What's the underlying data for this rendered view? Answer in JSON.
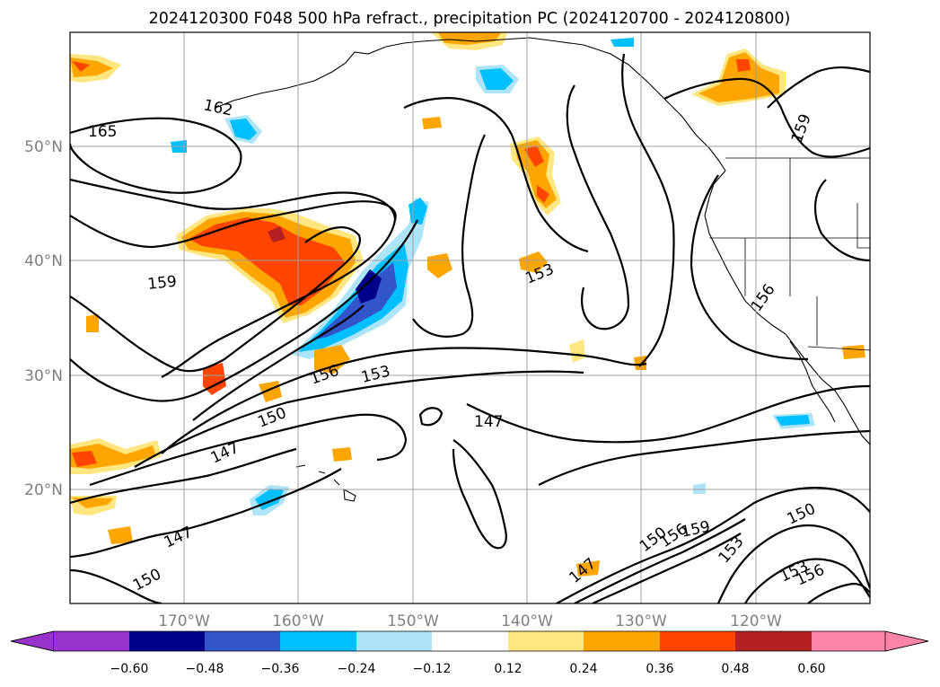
{
  "chart_data": {
    "type": "heatmap",
    "title": "2024120300 F048 500 hPa refract., precipitation PC (2024120700 - 2024120800)",
    "x_ticks": [
      "170°W",
      "160°W",
      "150°W",
      "140°W",
      "130°W",
      "120°W"
    ],
    "y_ticks": [
      "20°N",
      "30°N",
      "40°N",
      "50°N"
    ],
    "lon_range": [
      -180,
      -110
    ],
    "lat_range": [
      10,
      60
    ],
    "grid": true,
    "colorbar": {
      "orientation": "horizontal",
      "placement": "bottom",
      "extend": "both",
      "tick_labels": [
        "−0.60",
        "−0.48",
        "−0.36",
        "−0.24",
        "−0.12",
        "0.12",
        "0.24",
        "0.36",
        "0.48",
        "0.60"
      ],
      "colors": [
        "#9932cc",
        "#00008b",
        "#3355cc",
        "#00bfff",
        "#aee4f8",
        "#ffffff",
        "#ffe680",
        "#ffa500",
        "#ff4500",
        "#b22222",
        "#ff85a8"
      ]
    },
    "contour_labels": [
      {
        "text": "165"
      },
      {
        "text": "162"
      },
      {
        "text": "159"
      },
      {
        "text": "159"
      },
      {
        "text": "156"
      },
      {
        "text": "156"
      },
      {
        "text": "153"
      },
      {
        "text": "153"
      },
      {
        "text": "150"
      },
      {
        "text": "147"
      },
      {
        "text": "147"
      },
      {
        "text": "147"
      },
      {
        "text": "150"
      },
      {
        "text": "147"
      },
      {
        "text": "150"
      },
      {
        "text": "156"
      },
      {
        "text": "159"
      },
      {
        "text": "153"
      },
      {
        "text": "150"
      },
      {
        "text": "153"
      },
      {
        "text": "156"
      }
    ]
  }
}
